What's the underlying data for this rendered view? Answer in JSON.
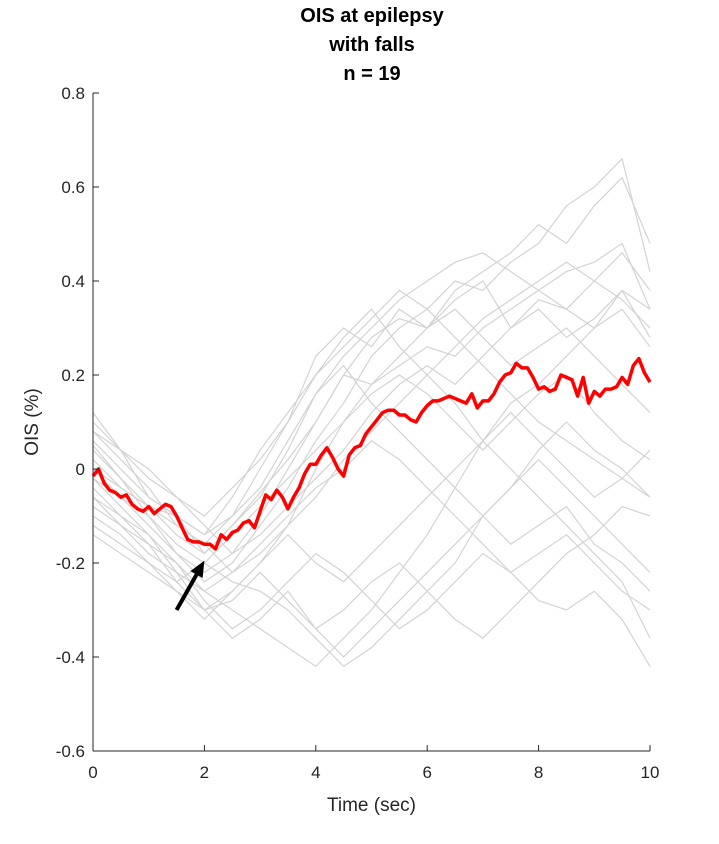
{
  "chart_data": {
    "type": "line",
    "title_lines": [
      "OIS at epilepsy",
      "with falls",
      "n = 19"
    ],
    "xlabel": "Time (sec)",
    "ylabel": "OIS (%)",
    "xlim": [
      0,
      10
    ],
    "ylim": [
      -0.6,
      0.8
    ],
    "xticks": [
      0,
      2,
      4,
      6,
      8,
      10
    ],
    "xtick_labels": [
      "0",
      "2",
      "4",
      "6",
      "8",
      "10"
    ],
    "yticks": [
      -0.6,
      -0.4,
      -0.2,
      0,
      0.2,
      0.4,
      0.6,
      0.8
    ],
    "ytick_labels": [
      "-0.6",
      "-0.4",
      "-0.2",
      "0",
      "0.2",
      "0.4",
      "0.6",
      "0.8"
    ],
    "grid": false,
    "colors": {
      "mean": "#ff0000",
      "individual": "#d3d3d3",
      "arrow": "#000000",
      "axis": "#262626"
    },
    "mean_series": {
      "x": [
        0,
        0.1,
        0.2,
        0.3,
        0.4,
        0.5,
        0.6,
        0.7,
        0.8,
        0.9,
        1.0,
        1.1,
        1.2,
        1.3,
        1.4,
        1.5,
        1.6,
        1.7,
        1.8,
        1.9,
        2.0,
        2.1,
        2.2,
        2.3,
        2.4,
        2.5,
        2.6,
        2.7,
        2.8,
        2.9,
        3.0,
        3.1,
        3.2,
        3.3,
        3.4,
        3.5,
        3.6,
        3.7,
        3.8,
        3.9,
        4.0,
        4.1,
        4.2,
        4.3,
        4.4,
        4.5,
        4.6,
        4.7,
        4.8,
        4.9,
        5.0,
        5.1,
        5.2,
        5.3,
        5.4,
        5.5,
        5.6,
        5.7,
        5.8,
        5.9,
        6.0,
        6.1,
        6.2,
        6.3,
        6.4,
        6.5,
        6.6,
        6.7,
        6.8,
        6.9,
        7.0,
        7.1,
        7.2,
        7.3,
        7.4,
        7.5,
        7.6,
        7.7,
        7.8,
        7.9,
        8.0,
        8.1,
        8.2,
        8.3,
        8.4,
        8.5,
        8.6,
        8.7,
        8.8,
        8.9,
        9.0,
        9.1,
        9.2,
        9.3,
        9.4,
        9.5,
        9.6,
        9.7,
        9.8,
        9.9,
        10.0
      ],
      "y": [
        -0.015,
        0.0,
        -0.03,
        -0.045,
        -0.05,
        -0.06,
        -0.055,
        -0.075,
        -0.085,
        -0.09,
        -0.08,
        -0.095,
        -0.085,
        -0.075,
        -0.08,
        -0.1,
        -0.125,
        -0.15,
        -0.155,
        -0.155,
        -0.16,
        -0.16,
        -0.17,
        -0.14,
        -0.15,
        -0.135,
        -0.13,
        -0.115,
        -0.11,
        -0.125,
        -0.09,
        -0.055,
        -0.065,
        -0.045,
        -0.06,
        -0.085,
        -0.06,
        -0.04,
        -0.01,
        0.01,
        0.01,
        0.03,
        0.045,
        0.025,
        0.0,
        -0.015,
        0.03,
        0.045,
        0.05,
        0.075,
        0.09,
        0.105,
        0.12,
        0.125,
        0.125,
        0.115,
        0.115,
        0.105,
        0.1,
        0.12,
        0.135,
        0.145,
        0.145,
        0.15,
        0.155,
        0.15,
        0.145,
        0.14,
        0.16,
        0.13,
        0.145,
        0.145,
        0.16,
        0.185,
        0.2,
        0.205,
        0.225,
        0.215,
        0.215,
        0.195,
        0.17,
        0.175,
        0.165,
        0.17,
        0.2,
        0.195,
        0.19,
        0.155,
        0.195,
        0.14,
        0.165,
        0.155,
        0.17,
        0.17,
        0.175,
        0.195,
        0.18,
        0.22,
        0.235,
        0.205,
        0.185
      ]
    },
    "individual_series_count": 19,
    "individual_series": [
      {
        "x": [
          0,
          0.5,
          1,
          1.5,
          2,
          2.5,
          3,
          3.5,
          4,
          4.5,
          5,
          5.5,
          6,
          6.5,
          7,
          7.5,
          8,
          8.5,
          9,
          9.5,
          10
        ],
        "y": [
          0.12,
          0.04,
          -0.06,
          -0.1,
          -0.18,
          -0.12,
          -0.05,
          0.02,
          0.1,
          0.2,
          0.28,
          0.32,
          0.3,
          0.38,
          0.42,
          0.46,
          0.52,
          0.48,
          0.56,
          0.62,
          0.48
        ]
      },
      {
        "x": [
          0,
          0.5,
          1,
          1.5,
          2,
          2.5,
          3,
          3.5,
          4,
          4.5,
          5,
          5.5,
          6,
          6.5,
          7,
          7.5,
          8,
          8.5,
          9,
          9.5,
          10
        ],
        "y": [
          0.05,
          -0.02,
          -0.1,
          -0.18,
          -0.24,
          -0.2,
          -0.12,
          -0.04,
          0.06,
          0.14,
          0.24,
          0.3,
          0.34,
          0.4,
          0.38,
          0.44,
          0.48,
          0.56,
          0.6,
          0.66,
          0.42
        ]
      },
      {
        "x": [
          0,
          0.5,
          1,
          1.5,
          2,
          2.5,
          3,
          3.5,
          4,
          4.5,
          5,
          5.5,
          6,
          6.5,
          7,
          7.5,
          8,
          8.5,
          9,
          9.5,
          10
        ],
        "y": [
          -0.02,
          -0.08,
          -0.14,
          -0.22,
          -0.3,
          -0.26,
          -0.2,
          -0.12,
          0.0,
          0.1,
          0.18,
          0.22,
          0.26,
          0.24,
          0.3,
          0.34,
          0.38,
          0.42,
          0.44,
          0.48,
          0.34
        ]
      },
      {
        "x": [
          0,
          0.5,
          1,
          1.5,
          2,
          2.5,
          3,
          3.5,
          4,
          4.5,
          5,
          5.5,
          6,
          6.5,
          7,
          7.5,
          8,
          8.5,
          9,
          9.5,
          10
        ],
        "y": [
          0.08,
          0.02,
          -0.04,
          -0.12,
          -0.16,
          -0.1,
          0.0,
          0.1,
          0.24,
          0.3,
          0.26,
          0.34,
          0.3,
          0.36,
          0.4,
          0.3,
          0.36,
          0.34,
          0.3,
          0.38,
          0.28
        ]
      },
      {
        "x": [
          0,
          0.5,
          1,
          1.5,
          2,
          2.5,
          3,
          3.5,
          4,
          4.5,
          5,
          5.5,
          6,
          6.5,
          7,
          7.5,
          8,
          8.5,
          9,
          9.5,
          10
        ],
        "y": [
          -0.06,
          -0.12,
          -0.18,
          -0.22,
          -0.26,
          -0.3,
          -0.34,
          -0.38,
          -0.42,
          -0.36,
          -0.3,
          -0.22,
          -0.14,
          -0.04,
          0.06,
          0.14,
          0.18,
          0.24,
          0.3,
          0.34,
          0.26
        ]
      },
      {
        "x": [
          0,
          0.5,
          1,
          1.5,
          2,
          2.5,
          3,
          3.5,
          4,
          4.5,
          5,
          5.5,
          6,
          6.5,
          7,
          7.5,
          8,
          8.5,
          9,
          9.5,
          10
        ],
        "y": [
          0.0,
          -0.06,
          -0.1,
          -0.16,
          -0.2,
          -0.24,
          -0.26,
          -0.3,
          -0.36,
          -0.42,
          -0.38,
          -0.32,
          -0.26,
          -0.2,
          -0.1,
          -0.04,
          0.04,
          0.1,
          0.04,
          0.0,
          -0.06
        ]
      },
      {
        "x": [
          0,
          0.5,
          1,
          1.5,
          2,
          2.5,
          3,
          3.5,
          4,
          4.5,
          5,
          5.5,
          6,
          6.5,
          7,
          7.5,
          8,
          8.5,
          9,
          9.5,
          10
        ],
        "y": [
          -0.1,
          -0.14,
          -0.2,
          -0.26,
          -0.3,
          -0.28,
          -0.22,
          -0.28,
          -0.34,
          -0.3,
          -0.24,
          -0.2,
          -0.26,
          -0.32,
          -0.36,
          -0.3,
          -0.24,
          -0.18,
          -0.14,
          -0.08,
          -0.1
        ]
      },
      {
        "x": [
          0,
          0.5,
          1,
          1.5,
          2,
          2.5,
          3,
          3.5,
          4,
          4.5,
          5,
          5.5,
          6,
          6.5,
          7,
          7.5,
          8,
          8.5,
          9,
          9.5,
          10
        ],
        "y": [
          0.02,
          -0.04,
          -0.08,
          -0.14,
          -0.18,
          -0.12,
          -0.06,
          0.04,
          0.16,
          0.22,
          0.14,
          0.08,
          0.02,
          -0.04,
          -0.1,
          -0.16,
          -0.12,
          -0.08,
          -0.16,
          -0.2,
          -0.26
        ]
      },
      {
        "x": [
          0,
          0.5,
          1,
          1.5,
          2,
          2.5,
          3,
          3.5,
          4,
          4.5,
          5,
          5.5,
          6,
          6.5,
          7,
          7.5,
          8,
          8.5,
          9,
          9.5,
          10
        ],
        "y": [
          -0.04,
          -0.1,
          -0.16,
          -0.2,
          -0.28,
          -0.34,
          -0.3,
          -0.24,
          -0.18,
          -0.22,
          -0.28,
          -0.34,
          -0.3,
          -0.24,
          -0.18,
          -0.22,
          -0.28,
          -0.3,
          -0.26,
          -0.32,
          -0.42
        ]
      },
      {
        "x": [
          0,
          0.5,
          1,
          1.5,
          2,
          2.5,
          3,
          3.5,
          4,
          4.5,
          5,
          5.5,
          6,
          6.5,
          7,
          7.5,
          8,
          8.5,
          9,
          9.5,
          10
        ],
        "y": [
          0.06,
          0.0,
          -0.06,
          -0.1,
          -0.14,
          -0.06,
          0.04,
          0.12,
          0.2,
          0.28,
          0.34,
          0.26,
          0.2,
          0.14,
          0.06,
          0.0,
          -0.06,
          -0.12,
          -0.18,
          -0.24,
          -0.36
        ]
      },
      {
        "x": [
          0,
          0.5,
          1,
          1.5,
          2,
          2.5,
          3,
          3.5,
          4,
          4.5,
          5,
          5.5,
          6,
          6.5,
          7,
          7.5,
          8,
          8.5,
          9,
          9.5,
          10
        ],
        "y": [
          -0.08,
          -0.12,
          -0.16,
          -0.24,
          -0.3,
          -0.36,
          -0.32,
          -0.26,
          -0.34,
          -0.4,
          -0.34,
          -0.28,
          -0.22,
          -0.16,
          -0.1,
          -0.04,
          0.02,
          -0.04,
          -0.1,
          -0.16,
          -0.22
        ]
      },
      {
        "x": [
          0,
          0.5,
          1,
          1.5,
          2,
          2.5,
          3,
          3.5,
          4,
          4.5,
          5,
          5.5,
          6,
          6.5,
          7,
          7.5,
          8,
          8.5,
          9,
          9.5,
          10
        ],
        "y": [
          0.1,
          0.04,
          -0.02,
          -0.06,
          -0.1,
          -0.04,
          0.02,
          0.1,
          0.2,
          0.26,
          0.32,
          0.38,
          0.34,
          0.28,
          0.22,
          0.16,
          0.1,
          0.06,
          0.02,
          -0.02,
          -0.06
        ]
      },
      {
        "x": [
          0,
          0.5,
          1,
          1.5,
          2,
          2.5,
          3,
          3.5,
          4,
          4.5,
          5,
          5.5,
          6,
          6.5,
          7,
          7.5,
          8,
          8.5,
          9,
          9.5,
          10
        ],
        "y": [
          -0.12,
          -0.16,
          -0.2,
          -0.24,
          -0.2,
          -0.14,
          -0.08,
          -0.02,
          0.04,
          0.1,
          0.16,
          0.2,
          0.16,
          0.1,
          0.04,
          0.1,
          0.16,
          0.2,
          0.12,
          0.06,
          0.02
        ]
      },
      {
        "x": [
          0,
          0.5,
          1,
          1.5,
          2,
          2.5,
          3,
          3.5,
          4,
          4.5,
          5,
          5.5,
          6,
          6.5,
          7,
          7.5,
          8,
          8.5,
          9,
          9.5,
          10
        ],
        "y": [
          0.04,
          -0.02,
          -0.08,
          -0.12,
          -0.16,
          -0.22,
          -0.18,
          -0.12,
          -0.06,
          0.02,
          0.08,
          0.14,
          0.2,
          0.26,
          0.32,
          0.36,
          0.4,
          0.44,
          0.4,
          0.36,
          0.3
        ]
      },
      {
        "x": [
          0,
          0.5,
          1,
          1.5,
          2,
          2.5,
          3,
          3.5,
          4,
          4.5,
          5,
          5.5,
          6,
          6.5,
          7,
          7.5,
          8,
          8.5,
          9,
          9.5,
          10
        ],
        "y": [
          -0.02,
          -0.06,
          -0.12,
          -0.18,
          -0.22,
          -0.18,
          -0.1,
          0.0,
          0.1,
          0.2,
          0.18,
          0.24,
          0.3,
          0.34,
          0.28,
          0.22,
          0.26,
          0.3,
          0.24,
          0.18,
          0.12
        ]
      },
      {
        "x": [
          0,
          0.5,
          1,
          1.5,
          2,
          2.5,
          3,
          3.5,
          4,
          4.5,
          5,
          5.5,
          6,
          6.5,
          7,
          7.5,
          8,
          8.5,
          9,
          9.5,
          10
        ],
        "y": [
          0.08,
          0.04,
          0.0,
          -0.06,
          -0.12,
          -0.18,
          -0.14,
          -0.08,
          -0.02,
          0.04,
          0.12,
          0.18,
          0.22,
          0.18,
          0.24,
          0.3,
          0.34,
          0.28,
          0.32,
          0.38,
          0.34
        ]
      },
      {
        "x": [
          0,
          0.5,
          1,
          1.5,
          2,
          2.5,
          3,
          3.5,
          4,
          4.5,
          5,
          5.5,
          6,
          6.5,
          7,
          7.5,
          8,
          8.5,
          9,
          9.5,
          10
        ],
        "y": [
          -0.14,
          -0.18,
          -0.22,
          -0.26,
          -0.32,
          -0.26,
          -0.2,
          -0.14,
          -0.2,
          -0.24,
          -0.18,
          -0.12,
          -0.06,
          0.0,
          0.06,
          0.12,
          0.06,
          0.0,
          -0.06,
          -0.02,
          0.04
        ]
      },
      {
        "x": [
          0,
          0.5,
          1,
          1.5,
          2,
          2.5,
          3,
          3.5,
          4,
          4.5,
          5,
          5.5,
          6,
          6.5,
          7,
          7.5,
          8,
          8.5,
          9,
          9.5,
          10
        ],
        "y": [
          0.0,
          -0.04,
          -0.08,
          -0.1,
          -0.14,
          -0.1,
          -0.04,
          0.06,
          0.16,
          0.24,
          0.3,
          0.36,
          0.4,
          0.44,
          0.46,
          0.42,
          0.38,
          0.34,
          0.4,
          0.46,
          0.38
        ]
      },
      {
        "x": [
          0,
          0.5,
          1,
          1.5,
          2,
          2.5,
          3,
          3.5,
          4,
          4.5,
          5,
          5.5,
          6,
          6.5,
          7,
          7.5,
          8,
          8.5,
          9,
          9.5,
          10
        ],
        "y": [
          -0.06,
          -0.1,
          -0.14,
          -0.2,
          -0.26,
          -0.22,
          -0.16,
          -0.1,
          -0.04,
          0.0,
          0.06,
          0.02,
          -0.04,
          -0.1,
          -0.16,
          -0.22,
          -0.18,
          -0.14,
          -0.2,
          -0.26,
          -0.3
        ]
      }
    ],
    "annotation_arrow": {
      "from": [
        1.5,
        -0.3
      ],
      "to": [
        2.0,
        -0.195
      ]
    }
  }
}
